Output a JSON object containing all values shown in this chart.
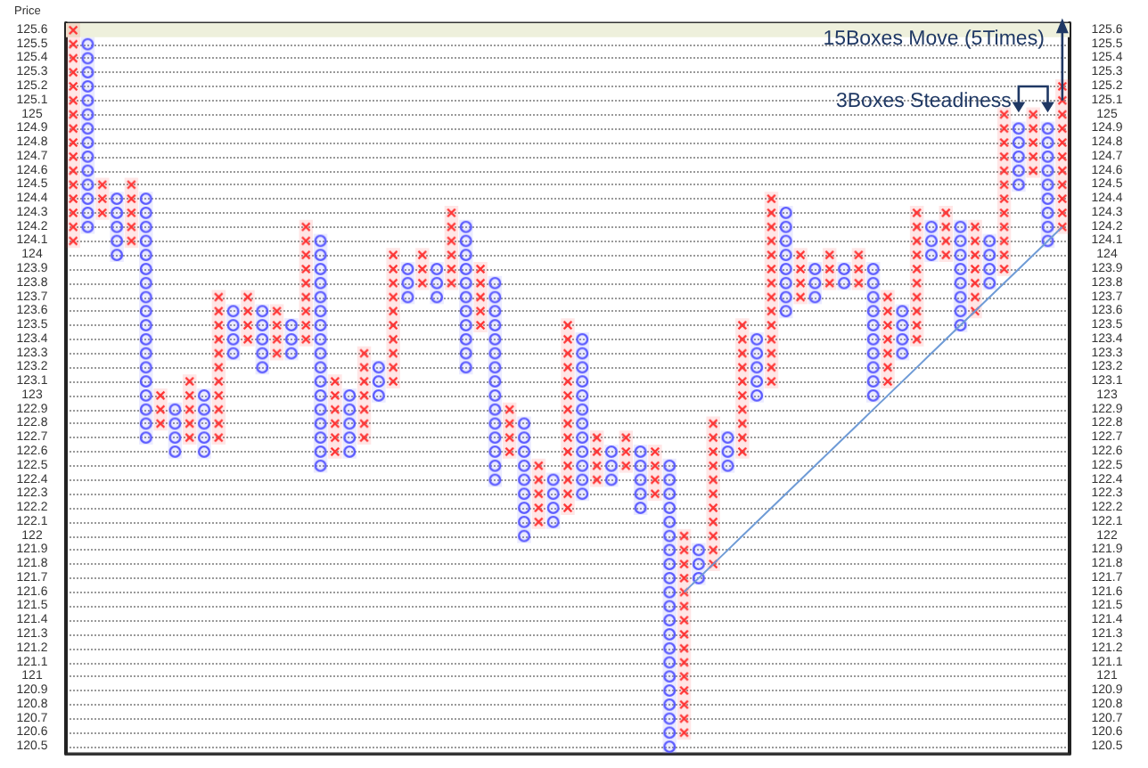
{
  "chart_data": {
    "type": "bar",
    "ylabel": "Price",
    "categories": [
      null,
      null,
      null,
      null,
      null,
      null,
      null,
      null,
      null,
      null,
      null,
      null,
      null,
      null,
      null,
      null,
      null,
      null,
      null,
      null,
      null,
      null,
      null,
      null,
      null,
      null,
      null,
      null,
      null,
      null,
      null,
      null,
      null,
      null,
      null,
      null,
      null,
      null,
      null,
      null,
      null,
      null,
      null,
      null,
      null,
      null,
      null,
      null,
      null,
      null,
      null,
      null,
      null,
      null,
      null,
      null,
      null,
      null,
      null,
      null,
      null,
      null,
      null,
      null,
      null,
      null,
      null,
      null,
      null
    ],
    "ylim": [
      120.45,
      125.65
    ],
    "yticks": [
      125.6,
      125.5,
      125.4,
      125.3,
      125.2,
      125.1,
      125,
      124.9,
      124.8,
      124.7,
      124.6,
      124.5,
      124.4,
      124.3,
      124.2,
      124.1,
      124,
      123.9,
      123.8,
      123.7,
      123.6,
      123.5,
      123.4,
      123.3,
      123.2,
      123.1,
      123,
      122.9,
      122.8,
      122.7,
      122.6,
      122.5,
      122.4,
      122.3,
      122.2,
      122.1,
      122,
      121.9,
      121.8,
      121.7,
      121.6,
      121.5,
      121.4,
      121.3,
      121.2,
      121.1,
      121,
      120.9,
      120.8,
      120.7,
      120.6,
      120.5
    ],
    "y2lim": [
      120.45,
      125.65
    ],
    "y2ticks": [
      125.6,
      125.5,
      125.4,
      125.3,
      125.2,
      125.1,
      125,
      124.9,
      124.8,
      124.7,
      124.6,
      124.5,
      124.4,
      124.3,
      124.2,
      124.1,
      124,
      123.9,
      123.8,
      123.7,
      123.6,
      123.5,
      123.4,
      123.3,
      123.2,
      123.1,
      123,
      122.9,
      122.8,
      122.7,
      122.6,
      122.5,
      122.4,
      122.3,
      122.2,
      122.1,
      122,
      121.9,
      121.8,
      121.7,
      121.6,
      121.5,
      121.4,
      121.3,
      121.2,
      121.1,
      121,
      120.9,
      120.8,
      120.7,
      120.6,
      120.5
    ],
    "grid": "y",
    "series": [
      {
        "marker": "cross",
        "color": "#ff3333",
        "base": [
          124.05,
          null,
          124.25,
          null,
          124.05,
          null,
          122.75,
          null,
          122.65,
          null,
          122.65,
          null,
          123.35,
          null,
          123.25,
          null,
          123.35,
          null,
          122.55,
          null,
          122.65,
          null,
          123.05,
          null,
          123.75,
          null,
          123.75,
          null,
          123.45,
          null,
          122.55,
          null,
          122.05,
          null,
          122.15,
          null,
          122.35,
          null,
          122.45,
          null,
          122.25,
          null,
          120.55,
          null,
          121.75,
          null,
          122.55,
          null,
          123.05,
          null,
          123.65,
          null,
          123.75,
          null,
          123.75,
          null,
          123.05,
          null,
          123.35,
          null,
          123.95,
          null,
          123.55,
          null,
          123.85,
          null,
          124.55,
          null,
          124.15
        ],
        "values": [
          1.6,
          null,
          0.3,
          null,
          0.5,
          null,
          0.3,
          null,
          0.5,
          null,
          1.1,
          null,
          0.4,
          null,
          0.4,
          null,
          0.9,
          null,
          0.6,
          null,
          0.7,
          null,
          1.0,
          null,
          0.3,
          null,
          0.6,
          null,
          0.5,
          null,
          0.4,
          null,
          0.5,
          null,
          1.4,
          null,
          0.4,
          null,
          0.3,
          null,
          0.4,
          null,
          1.5,
          null,
          1.1,
          null,
          1.0,
          null,
          1.4,
          null,
          0.4,
          null,
          0.3,
          null,
          0.3,
          null,
          0.7,
          null,
          1.0,
          null,
          0.4,
          null,
          0.7,
          null,
          1.2,
          null,
          0.5,
          null,
          1.1
        ]
      },
      {
        "marker": "circle",
        "color": "#5a5aff",
        "base": [
          null,
          124.15,
          null,
          123.95,
          null,
          122.65,
          null,
          122.55,
          null,
          122.55,
          null,
          123.25,
          null,
          123.15,
          null,
          123.25,
          null,
          122.45,
          null,
          122.55,
          null,
          122.95,
          null,
          123.65,
          null,
          123.65,
          null,
          123.15,
          null,
          122.35,
          null,
          121.95,
          null,
          122.05,
          null,
          122.25,
          null,
          122.35,
          null,
          122.15,
          null,
          120.45,
          null,
          121.65,
          null,
          122.45,
          null,
          122.95,
          null,
          123.55,
          null,
          123.65,
          null,
          123.75,
          null,
          122.95,
          null,
          123.25,
          null,
          123.95,
          null,
          123.45,
          null,
          123.75,
          null,
          124.45,
          null,
          124.05,
          null
        ],
        "values": [
          null,
          1.4,
          null,
          0.5,
          null,
          1.8,
          null,
          0.4,
          null,
          0.5,
          null,
          0.4,
          null,
          0.5,
          null,
          0.3,
          null,
          1.7,
          null,
          0.5,
          null,
          0.3,
          null,
          0.3,
          null,
          0.3,
          null,
          1.1,
          null,
          1.5,
          null,
          0.9,
          null,
          0.4,
          null,
          1.2,
          null,
          0.3,
          null,
          0.5,
          null,
          2.1,
          null,
          0.3,
          null,
          0.3,
          null,
          0.5,
          null,
          0.8,
          null,
          0.3,
          null,
          0.2,
          null,
          1.0,
          null,
          0.4,
          null,
          0.3,
          null,
          0.8,
          null,
          0.4,
          null,
          0.5,
          null,
          0.9,
          null
        ]
      },
      {
        "type": "line",
        "color": "#6f9bd6",
        "values": [
          null,
          null,
          null,
          null,
          null,
          null,
          null,
          null,
          null,
          null,
          null,
          null,
          null,
          null,
          null,
          null,
          null,
          null,
          null,
          null,
          null,
          null,
          null,
          null,
          null,
          null,
          null,
          null,
          null,
          null,
          null,
          null,
          null,
          null,
          null,
          null,
          null,
          null,
          null,
          null,
          null,
          null,
          121.6,
          121.7,
          121.8,
          121.9,
          122.0,
          122.1,
          122.2,
          122.3,
          122.4,
          122.5,
          122.6,
          122.7,
          122.8,
          122.9,
          123.0,
          123.1,
          123.2,
          123.3,
          123.4,
          123.5,
          123.6,
          123.7,
          123.8,
          123.9,
          124.0,
          124.1,
          124.2
        ]
      }
    ],
    "bands": [
      {
        "axis": "y",
        "from": 125.55,
        "to": 125.65,
        "color": "#eef0dc"
      }
    ],
    "annotations": [
      "15Boxes Move (5Times)",
      "3Boxes Steadiness"
    ]
  }
}
